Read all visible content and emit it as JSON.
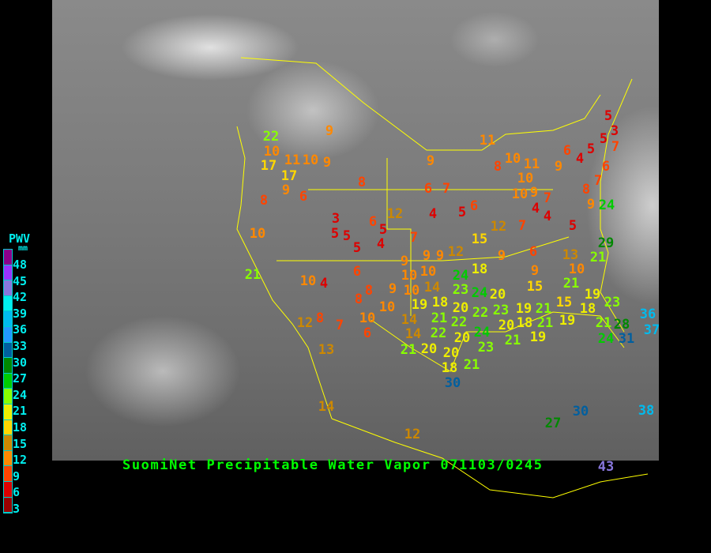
{
  "title": "SuomiNet Precipitable Water Vapor 071103/0245",
  "legend": {
    "title": "PWV",
    "unit": "mm",
    "labels": [
      "48",
      "45",
      "42",
      "39",
      "36",
      "33",
      "30",
      "27",
      "24",
      "21",
      "18",
      "15",
      "12",
      "9",
      "6",
      "3"
    ],
    "colors": [
      "#8b008b",
      "#9933ff",
      "#8877dd",
      "#00eeee",
      "#00bbee",
      "#2299ff",
      "#005f9f",
      "#008800",
      "#00cc00",
      "#88ff00",
      "#eeee00",
      "#ffd700",
      "#cc8800",
      "#ff8800",
      "#ff4400",
      "#dd0000",
      "#990000"
    ]
  },
  "stations": [
    22,
    10,
    17,
    11,
    10,
    17,
    9,
    9,
    8,
    9,
    6,
    8,
    10,
    21,
    3,
    5,
    5,
    5,
    6,
    5,
    4,
    12,
    4,
    9,
    6,
    7,
    5,
    6,
    7,
    11,
    8,
    10,
    11,
    10,
    10,
    9,
    7,
    4,
    4,
    5,
    9,
    6,
    4,
    5,
    5,
    3,
    5,
    7,
    6,
    7,
    8,
    9,
    24,
    29,
    9,
    9,
    9,
    12,
    9,
    6,
    6,
    10,
    10,
    14,
    24,
    18,
    9,
    23,
    18,
    8,
    9,
    10,
    19,
    20,
    24,
    20,
    15,
    8,
    10,
    14,
    21,
    22,
    22,
    23,
    20,
    19,
    21,
    10,
    6,
    14,
    20,
    22,
    20,
    24,
    21,
    18,
    19,
    23,
    21,
    20,
    21,
    18,
    30,
    10,
    4,
    12,
    8,
    7,
    13,
    14,
    12,
    15,
    12,
    7,
    13,
    21,
    10,
    21,
    15,
    19,
    23,
    21,
    19,
    18,
    21,
    28,
    36,
    37,
    24,
    31,
    27,
    30,
    38,
    43
  ]
}
